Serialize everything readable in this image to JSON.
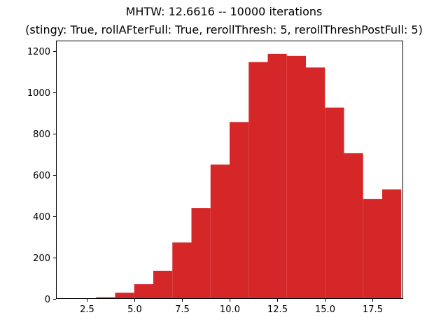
{
  "chart_data": {
    "type": "bar",
    "title_lines": [
      "MHTW: 12.6616 -- 10000 iterations",
      "(stingy: True, rollAFterFull: True, rerollThresh: 5, rerollThreshPostFull: 5)"
    ],
    "xlabel": "",
    "ylabel": "",
    "xlim": [
      0.9,
      19.1
    ],
    "ylim": [
      0,
      1250
    ],
    "bin_edges": [
      1,
      2,
      3,
      4,
      5,
      6,
      7,
      8,
      9,
      10,
      11,
      12,
      13,
      14,
      15,
      16,
      17,
      18,
      19
    ],
    "bins": [
      {
        "x0": 1,
        "x1": 2,
        "count": 0
      },
      {
        "x0": 2,
        "x1": 3,
        "count": 3
      },
      {
        "x0": 3,
        "x1": 4,
        "count": 8
      },
      {
        "x0": 4,
        "x1": 5,
        "count": 30
      },
      {
        "x0": 5,
        "x1": 6,
        "count": 71
      },
      {
        "x0": 6,
        "x1": 7,
        "count": 136
      },
      {
        "x0": 7,
        "x1": 8,
        "count": 273
      },
      {
        "x0": 8,
        "x1": 9,
        "count": 440
      },
      {
        "x0": 9,
        "x1": 10,
        "count": 650
      },
      {
        "x0": 10,
        "x1": 11,
        "count": 856
      },
      {
        "x0": 11,
        "x1": 12,
        "count": 1146
      },
      {
        "x0": 12,
        "x1": 13,
        "count": 1186
      },
      {
        "x0": 13,
        "x1": 14,
        "count": 1176
      },
      {
        "x0": 14,
        "x1": 15,
        "count": 1120
      },
      {
        "x0": 15,
        "x1": 16,
        "count": 926
      },
      {
        "x0": 16,
        "x1": 17,
        "count": 705
      },
      {
        "x0": 17,
        "x1": 18,
        "count": 484
      },
      {
        "x0": 18,
        "x1": 19,
        "count": 530
      }
    ],
    "x_ticks": [
      2.5,
      5.0,
      7.5,
      10.0,
      12.5,
      15.0,
      17.5
    ],
    "x_tick_labels": [
      "2.5",
      "5.0",
      "7.5",
      "10.0",
      "12.5",
      "15.0",
      "17.5"
    ],
    "y_ticks": [
      0,
      200,
      400,
      600,
      800,
      1000,
      1200
    ],
    "y_tick_labels": [
      "0",
      "200",
      "400",
      "600",
      "800",
      "1000",
      "1200"
    ],
    "bar_color": "#d62728",
    "grid": false,
    "legend": "none"
  }
}
